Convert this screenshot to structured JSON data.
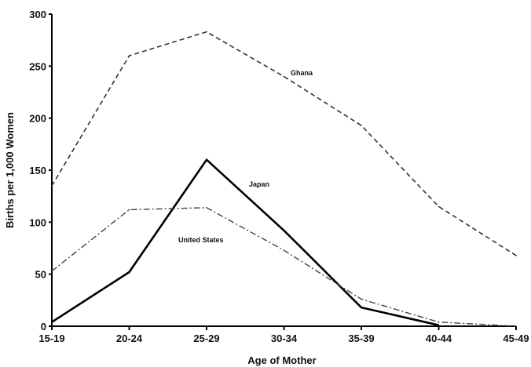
{
  "chart_data": {
    "type": "line",
    "title": "",
    "xlabel": "Age of Mother",
    "ylabel": "Births per 1,000 Women",
    "categories": [
      "15-19",
      "20-24",
      "25-29",
      "30-34",
      "35-39",
      "40-44",
      "45-49"
    ],
    "ylim": [
      0,
      300
    ],
    "yticks": [
      0,
      50,
      100,
      150,
      200,
      250,
      300
    ],
    "grid": false,
    "legend": "inline labels",
    "series": [
      {
        "name": "Ghana",
        "values": [
          135,
          260,
          283,
          240,
          193,
          115,
          68
        ],
        "style": "dashed",
        "color": "#333333"
      },
      {
        "name": "Japan",
        "values": [
          4,
          52,
          160,
          92,
          18,
          1,
          null
        ],
        "style": "solid",
        "color": "#000000"
      },
      {
        "name": "United States",
        "values": [
          53,
          112,
          114,
          73,
          26,
          4,
          0
        ],
        "style": "dash-dot",
        "color": "#444444"
      }
    ]
  }
}
